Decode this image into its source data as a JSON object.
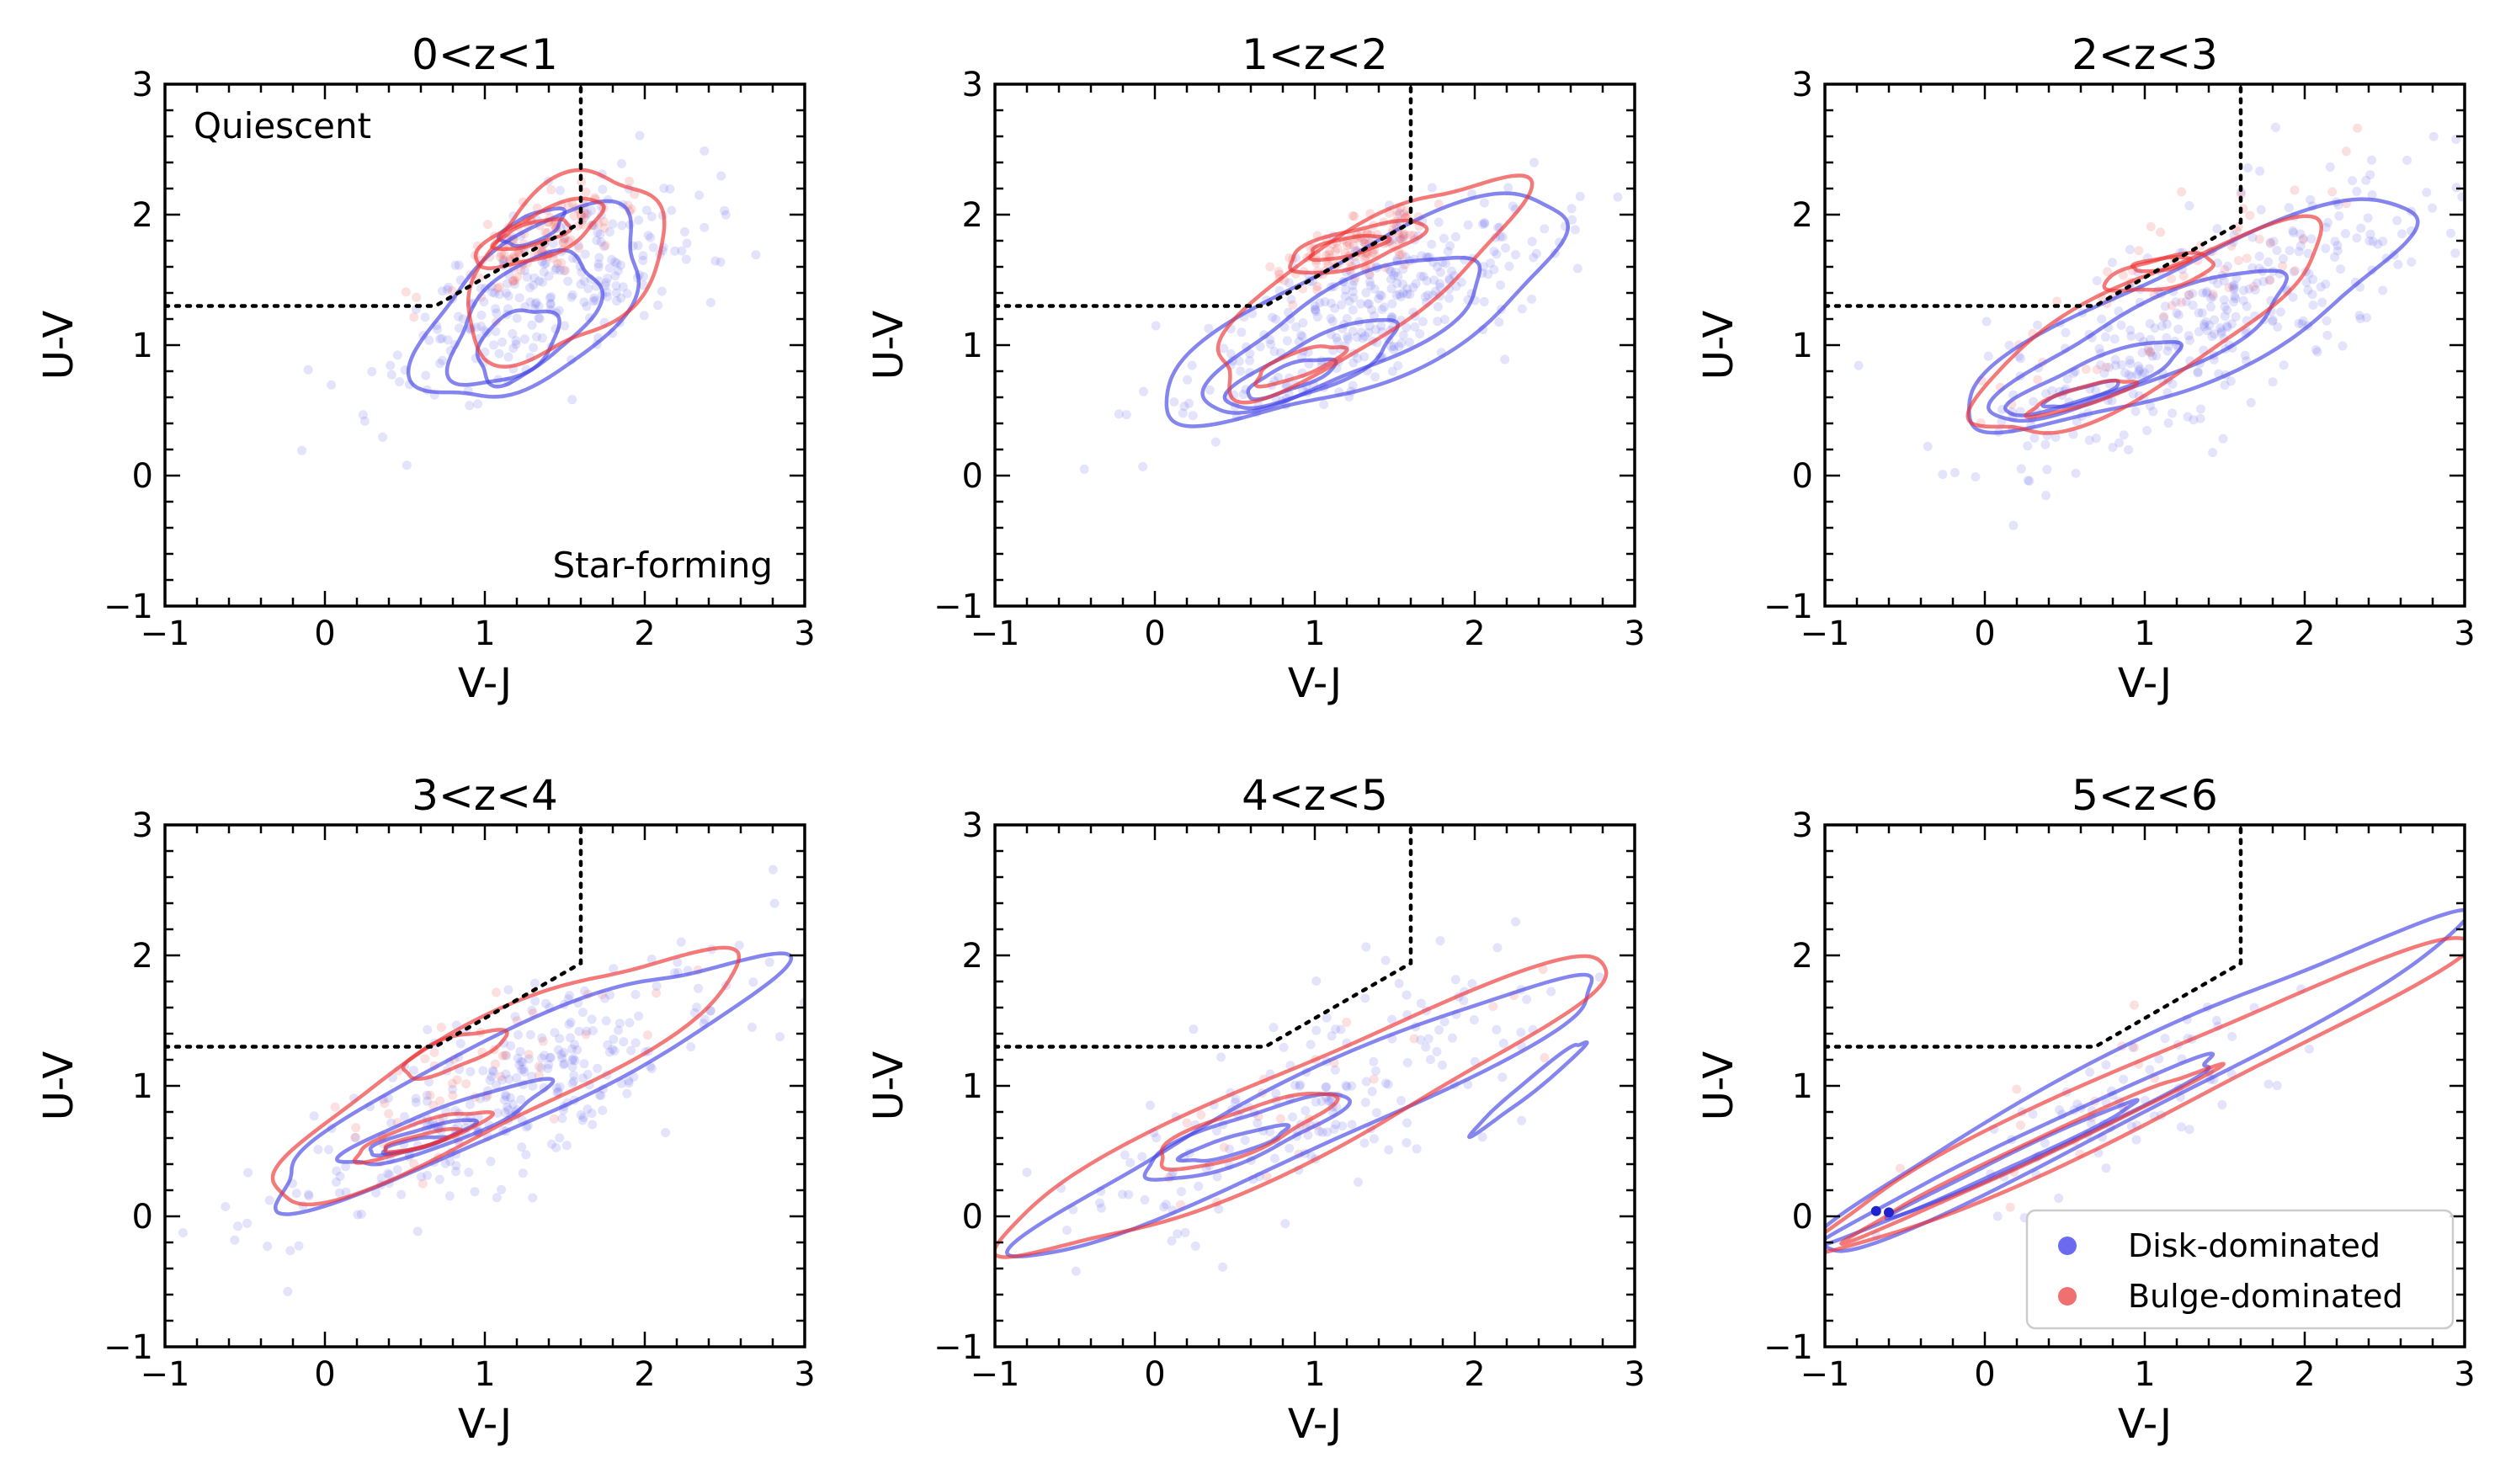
{
  "chart_data": {
    "type": "scatter",
    "xlabel": "V-J",
    "ylabel": "U-V",
    "xlim": [
      -1,
      3
    ],
    "ylim": [
      -1,
      3
    ],
    "xticks": [
      "−1",
      "0",
      "1",
      "2",
      "3"
    ],
    "yticks": [
      "−1",
      "0",
      "1",
      "2",
      "3"
    ],
    "region_labels": {
      "quiescent": "Quiescent",
      "star_forming": "Star-forming"
    },
    "selection_boundary": [
      [
        -1,
        1.3
      ],
      [
        0.69,
        1.3
      ],
      [
        1.6,
        1.94
      ],
      [
        1.6,
        3
      ]
    ],
    "legend": [
      {
        "name": "Disk-dominated",
        "color": "#6b6bf0"
      },
      {
        "name": "Bulge-dominated",
        "color": "#f07070"
      }
    ],
    "colors": {
      "disk_contour": "#4444e6",
      "bulge_contour": "#ee3333",
      "disk_point": "#6666ee",
      "bulge_point": "#ee5555"
    },
    "panels": [
      {
        "title": "0<z<1",
        "disk_contours": [
          {
            "cx": 1.3,
            "cy": 1.3,
            "sx": 0.9,
            "sy": 1.05,
            "rot": 48
          },
          {
            "cx": 1.25,
            "cy": 1.2,
            "sx": 0.6,
            "sy": 0.72,
            "rot": 50
          },
          {
            "cx": 1.2,
            "cy": 1.0,
            "sx": 0.32,
            "sy": 0.45,
            "rot": 55
          },
          {
            "cx": 1.3,
            "cy": 1.9,
            "sx": 0.22,
            "sy": 0.22,
            "rot": 30
          }
        ],
        "bulge_contours": [
          {
            "cx": 1.5,
            "cy": 1.6,
            "sx": 0.8,
            "sy": 1.1,
            "rot": 55
          },
          {
            "cx": 1.35,
            "cy": 1.85,
            "sx": 0.45,
            "sy": 0.35,
            "rot": 30
          },
          {
            "cx": 1.3,
            "cy": 1.85,
            "sx": 0.25,
            "sy": 0.18,
            "rot": 20
          }
        ],
        "disk_points": {
          "cx": 1.4,
          "cy": 1.4,
          "sx": 0.5,
          "sy": 0.45,
          "n": 260
        },
        "bulge_points": {
          "cx": 1.35,
          "cy": 1.8,
          "sx": 0.25,
          "sy": 0.2,
          "n": 120
        }
      },
      {
        "title": "1<z<2",
        "disk_contours": [
          {
            "cx": 1.35,
            "cy": 1.25,
            "sx": 1.45,
            "sy": 1.05,
            "rot": 32
          },
          {
            "cx": 1.2,
            "cy": 1.1,
            "sx": 1.0,
            "sy": 0.7,
            "rot": 32
          },
          {
            "cx": 1.0,
            "cy": 0.85,
            "sx": 0.6,
            "sy": 0.4,
            "rot": 30
          },
          {
            "cx": 0.85,
            "cy": 0.75,
            "sx": 0.3,
            "sy": 0.2,
            "rot": 25
          }
        ],
        "bulge_contours": [
          {
            "cx": 1.3,
            "cy": 1.45,
            "sx": 1.2,
            "sy": 0.85,
            "rot": 40
          },
          {
            "cx": 1.25,
            "cy": 1.75,
            "sx": 0.45,
            "sy": 0.3,
            "rot": 20
          },
          {
            "cx": 1.2,
            "cy": 1.75,
            "sx": 0.25,
            "sy": 0.15,
            "rot": 15
          },
          {
            "cx": 0.9,
            "cy": 0.85,
            "sx": 0.3,
            "sy": 0.2,
            "rot": 25
          }
        ],
        "disk_points": {
          "cx": 1.4,
          "cy": 1.3,
          "sx": 0.6,
          "sy": 0.45,
          "n": 330
        },
        "bulge_points": {
          "cx": 1.25,
          "cy": 1.75,
          "sx": 0.22,
          "sy": 0.15,
          "n": 120
        }
      },
      {
        "title": "2<z<3",
        "disk_contours": [
          {
            "cx": 1.3,
            "cy": 1.2,
            "sx": 1.6,
            "sy": 0.95,
            "rot": 30
          },
          {
            "cx": 1.0,
            "cy": 1.0,
            "sx": 1.05,
            "sy": 0.6,
            "rot": 30
          },
          {
            "cx": 0.7,
            "cy": 0.75,
            "sx": 0.6,
            "sy": 0.3,
            "rot": 25
          },
          {
            "cx": 0.6,
            "cy": 0.62,
            "sx": 0.25,
            "sy": 0.12,
            "rot": 20
          }
        ],
        "bulge_contours": [
          {
            "cx": 1.0,
            "cy": 1.1,
            "sx": 1.3,
            "sy": 0.85,
            "rot": 35
          },
          {
            "cx": 1.1,
            "cy": 1.55,
            "sx": 0.35,
            "sy": 0.25,
            "rot": 15
          },
          {
            "cx": 1.1,
            "cy": 1.62,
            "sx": 0.18,
            "sy": 0.1,
            "rot": 10
          },
          {
            "cx": 0.6,
            "cy": 0.6,
            "sx": 0.35,
            "sy": 0.15,
            "rot": 20
          }
        ],
        "disk_points": {
          "cx": 1.4,
          "cy": 1.2,
          "sx": 0.7,
          "sy": 0.5,
          "n": 360
        },
        "bulge_points": {
          "cx": 1.2,
          "cy": 1.45,
          "sx": 0.5,
          "sy": 0.4,
          "n": 60
        }
      },
      {
        "title": "3<z<4",
        "disk_contours": [
          {
            "cx": 1.2,
            "cy": 1.05,
            "sx": 1.8,
            "sy": 0.75,
            "rot": 30
          },
          {
            "cx": 0.75,
            "cy": 0.7,
            "sx": 0.7,
            "sy": 0.3,
            "rot": 25
          },
          {
            "cx": 0.6,
            "cy": 0.6,
            "sx": 0.35,
            "sy": 0.15,
            "rot": 20
          },
          {
            "cx": 0.55,
            "cy": 0.55,
            "sx": 0.2,
            "sy": 0.08,
            "rot": 15
          }
        ],
        "bulge_contours": [
          {
            "cx": 1.1,
            "cy": 1.1,
            "sx": 1.7,
            "sy": 0.85,
            "rot": 32
          },
          {
            "cx": 0.8,
            "cy": 1.25,
            "sx": 0.35,
            "sy": 0.25,
            "rot": 25
          },
          {
            "cx": 0.6,
            "cy": 0.62,
            "sx": 0.45,
            "sy": 0.2,
            "rot": 22
          },
          {
            "cx": 0.6,
            "cy": 0.58,
            "sx": 0.25,
            "sy": 0.1,
            "rot": 18
          }
        ],
        "disk_points": {
          "cx": 1.2,
          "cy": 1.0,
          "sx": 0.7,
          "sy": 0.45,
          "n": 300
        },
        "bulge_points": {
          "cx": 0.9,
          "cy": 1.1,
          "sx": 0.5,
          "sy": 0.4,
          "n": 50
        }
      },
      {
        "title": "4<z<5",
        "disk_contours": [
          {
            "cx": 1.0,
            "cy": 0.8,
            "sx": 2.1,
            "sy": 0.6,
            "rot": 30
          },
          {
            "cx": 0.55,
            "cy": 0.6,
            "sx": 0.7,
            "sy": 0.35,
            "rot": 25
          },
          {
            "cx": 0.5,
            "cy": 0.55,
            "sx": 0.35,
            "sy": 0.15,
            "rot": 20
          },
          {
            "cx": 2.35,
            "cy": 1.0,
            "sx": 0.5,
            "sy": 0.1,
            "rot": 45
          }
        ],
        "bulge_contours": [
          {
            "cx": 0.9,
            "cy": 0.8,
            "sx": 2.2,
            "sy": 0.75,
            "rot": 30
          },
          {
            "cx": 0.55,
            "cy": 0.65,
            "sx": 0.6,
            "sy": 0.35,
            "rot": 25
          }
        ],
        "disk_points": {
          "cx": 1.0,
          "cy": 0.9,
          "sx": 0.75,
          "sy": 0.5,
          "n": 180
        },
        "bulge_points": {
          "cx": 0.9,
          "cy": 0.9,
          "sx": 0.6,
          "sy": 0.45,
          "n": 25
        }
      },
      {
        "title": "5<z<6",
        "disk_contours": [
          {
            "cx": 0.9,
            "cy": 1.0,
            "sx": 2.4,
            "sy": 0.55,
            "rot": 32
          },
          {
            "cx": 0.3,
            "cy": 0.55,
            "sx": 1.4,
            "sy": 0.22,
            "rot": 30
          },
          {
            "cx": 0.2,
            "cy": 0.45,
            "sx": 0.9,
            "sy": 0.1,
            "rot": 30
          }
        ],
        "bulge_contours": [
          {
            "cx": 0.9,
            "cy": 0.9,
            "sx": 2.4,
            "sy": 0.5,
            "rot": 30
          },
          {
            "cx": 0.3,
            "cy": 0.5,
            "sx": 1.3,
            "sy": 0.15,
            "rot": 30
          }
        ],
        "disk_points": {
          "cx": 0.8,
          "cy": 0.8,
          "sx": 0.5,
          "sy": 0.35,
          "n": 70
        },
        "bulge_points": {
          "cx": 0.8,
          "cy": 0.8,
          "sx": 0.6,
          "sy": 0.45,
          "n": 15
        },
        "highlight_points": [
          [
            -0.68,
            0.04
          ],
          [
            -0.6,
            0.03
          ]
        ]
      }
    ]
  }
}
